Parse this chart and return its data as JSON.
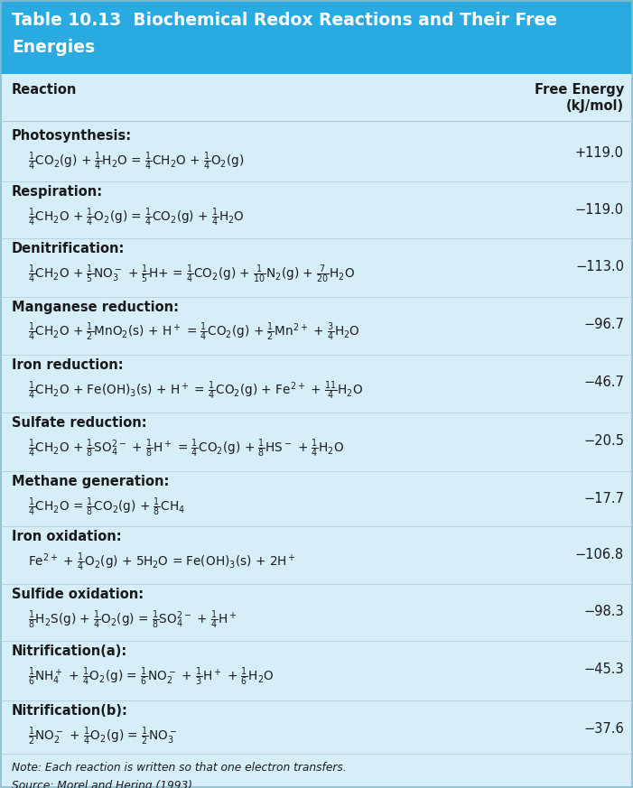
{
  "title_line1": "Table 10.13  Biochemical Redox Reactions and Their Free",
  "title_line2": "Energies",
  "header_bg": "#29ABE2",
  "table_bg": "#D6EEF8",
  "col1_header": "Reaction",
  "col2_header_line1": "Free Energy",
  "col2_header_line2": "(kJ/mol)",
  "rows": [
    {
      "name": "Photosynthesis:",
      "equation": "$\\frac{1}{4}$CO$_2$(g) + $\\frac{1}{4}$H$_2$O = $\\frac{1}{4}$CH$_2$O + $\\frac{1}{4}$O$_2$(g)",
      "energy": "+119.0"
    },
    {
      "name": "Respiration:",
      "equation": "$\\frac{1}{4}$CH$_2$O + $\\frac{1}{4}$O$_2$(g) = $\\frac{1}{4}$CO$_2$(g) + $\\frac{1}{4}$H$_2$O",
      "energy": "−119.0"
    },
    {
      "name": "Denitrification:",
      "equation": "$\\frac{1}{4}$CH$_2$O + $\\frac{1}{5}$NO$_3^-$ + $\\frac{1}{5}$H+ = $\\frac{1}{4}$CO$_2$(g) + $\\frac{1}{10}$N$_2$(g) + $\\frac{7}{20}$H$_2$O",
      "energy": "−113.0"
    },
    {
      "name": "Manganese reduction:",
      "equation": "$\\frac{1}{4}$CH$_2$O + $\\frac{1}{2}$MnO$_2$(s) + H$^+$ = $\\frac{1}{4}$CO$_2$(g) + $\\frac{1}{2}$Mn$^{2+}$ + $\\frac{3}{4}$H$_2$O",
      "energy": "−96.7"
    },
    {
      "name": "Iron reduction:",
      "equation": "$\\frac{1}{4}$CH$_2$O + Fe(OH)$_3$(s) + H$^+$ = $\\frac{1}{4}$CO$_2$(g) + Fe$^{2+}$ + $\\frac{11}{4}$H$_2$O",
      "energy": "−46.7"
    },
    {
      "name": "Sulfate reduction:",
      "equation": "$\\frac{1}{4}$CH$_2$O + $\\frac{1}{8}$SO$_4^{2-}$ + $\\frac{1}{8}$H$^+$ = $\\frac{1}{4}$CO$_2$(g) + $\\frac{1}{8}$HS$^-$ + $\\frac{1}{4}$H$_2$O",
      "energy": "−20.5"
    },
    {
      "name": "Methane generation:",
      "equation": "$\\frac{1}{4}$CH$_2$O = $\\frac{1}{8}$CO$_2$(g) + $\\frac{1}{8}$CH$_4$",
      "energy": "−17.7"
    },
    {
      "name": "Iron oxidation:",
      "equation": "Fe$^{2+}$ + $\\frac{1}{4}$O$_2$(g) + 5H$_2$O = Fe(OH)$_3$(s) + 2H$^+$",
      "energy": "−106.8"
    },
    {
      "name": "Sulfide oxidation:",
      "equation": "$\\frac{1}{8}$H$_2$S(g) + $\\frac{1}{4}$O$_2$(g) = $\\frac{1}{8}$SO$_4^{2-}$ + $\\frac{1}{4}$H$^+$",
      "energy": "−98.3"
    },
    {
      "name": "Nitrification(a):",
      "equation": "$\\frac{1}{6}$NH$_4^+$ + $\\frac{1}{4}$O$_2$(g) = $\\frac{1}{6}$NO$_2^-$ + $\\frac{1}{3}$H$^+$ + $\\frac{1}{6}$H$_2$O",
      "energy": "−45.3"
    },
    {
      "name": "Nitrification(b):",
      "equation": "$\\frac{1}{2}$NO$_2^-$ + $\\frac{1}{4}$O$_2$(g) = $\\frac{1}{2}$NO$_3^-$",
      "energy": "−37.6"
    }
  ],
  "note": "Note: Each reaction is written so that one electron transfers.",
  "source": "Source: Morel and Hering (1993).",
  "figwidth": 7.01,
  "figheight": 8.73,
  "dpi": 100
}
